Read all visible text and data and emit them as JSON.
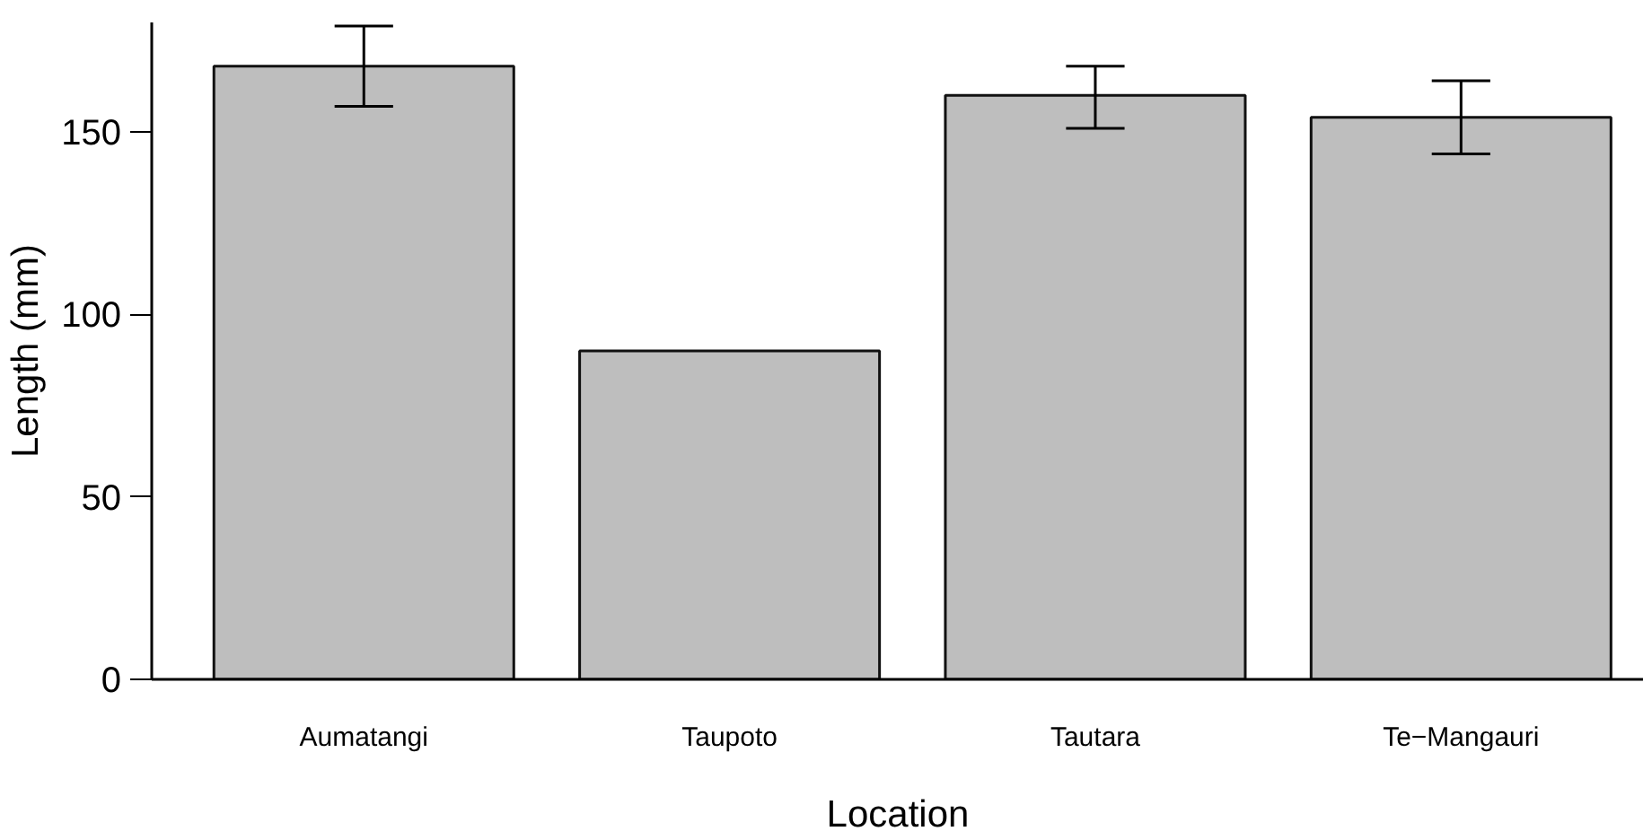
{
  "chart_data": {
    "type": "bar",
    "xlabel": "Location",
    "ylabel": "Length (mm)",
    "categories": [
      "Aumatangi",
      "Taupoto",
      "Tautara",
      "Te−Mangauri"
    ],
    "values": [
      168,
      90,
      160,
      154
    ],
    "errors": [
      [
        157,
        179
      ],
      null,
      [
        151,
        168
      ],
      [
        144,
        164
      ]
    ],
    "color": "#bebebe",
    "ylim": [
      0,
      180
    ],
    "yticks": [
      0,
      50,
      100,
      150
    ],
    "grid": false
  }
}
